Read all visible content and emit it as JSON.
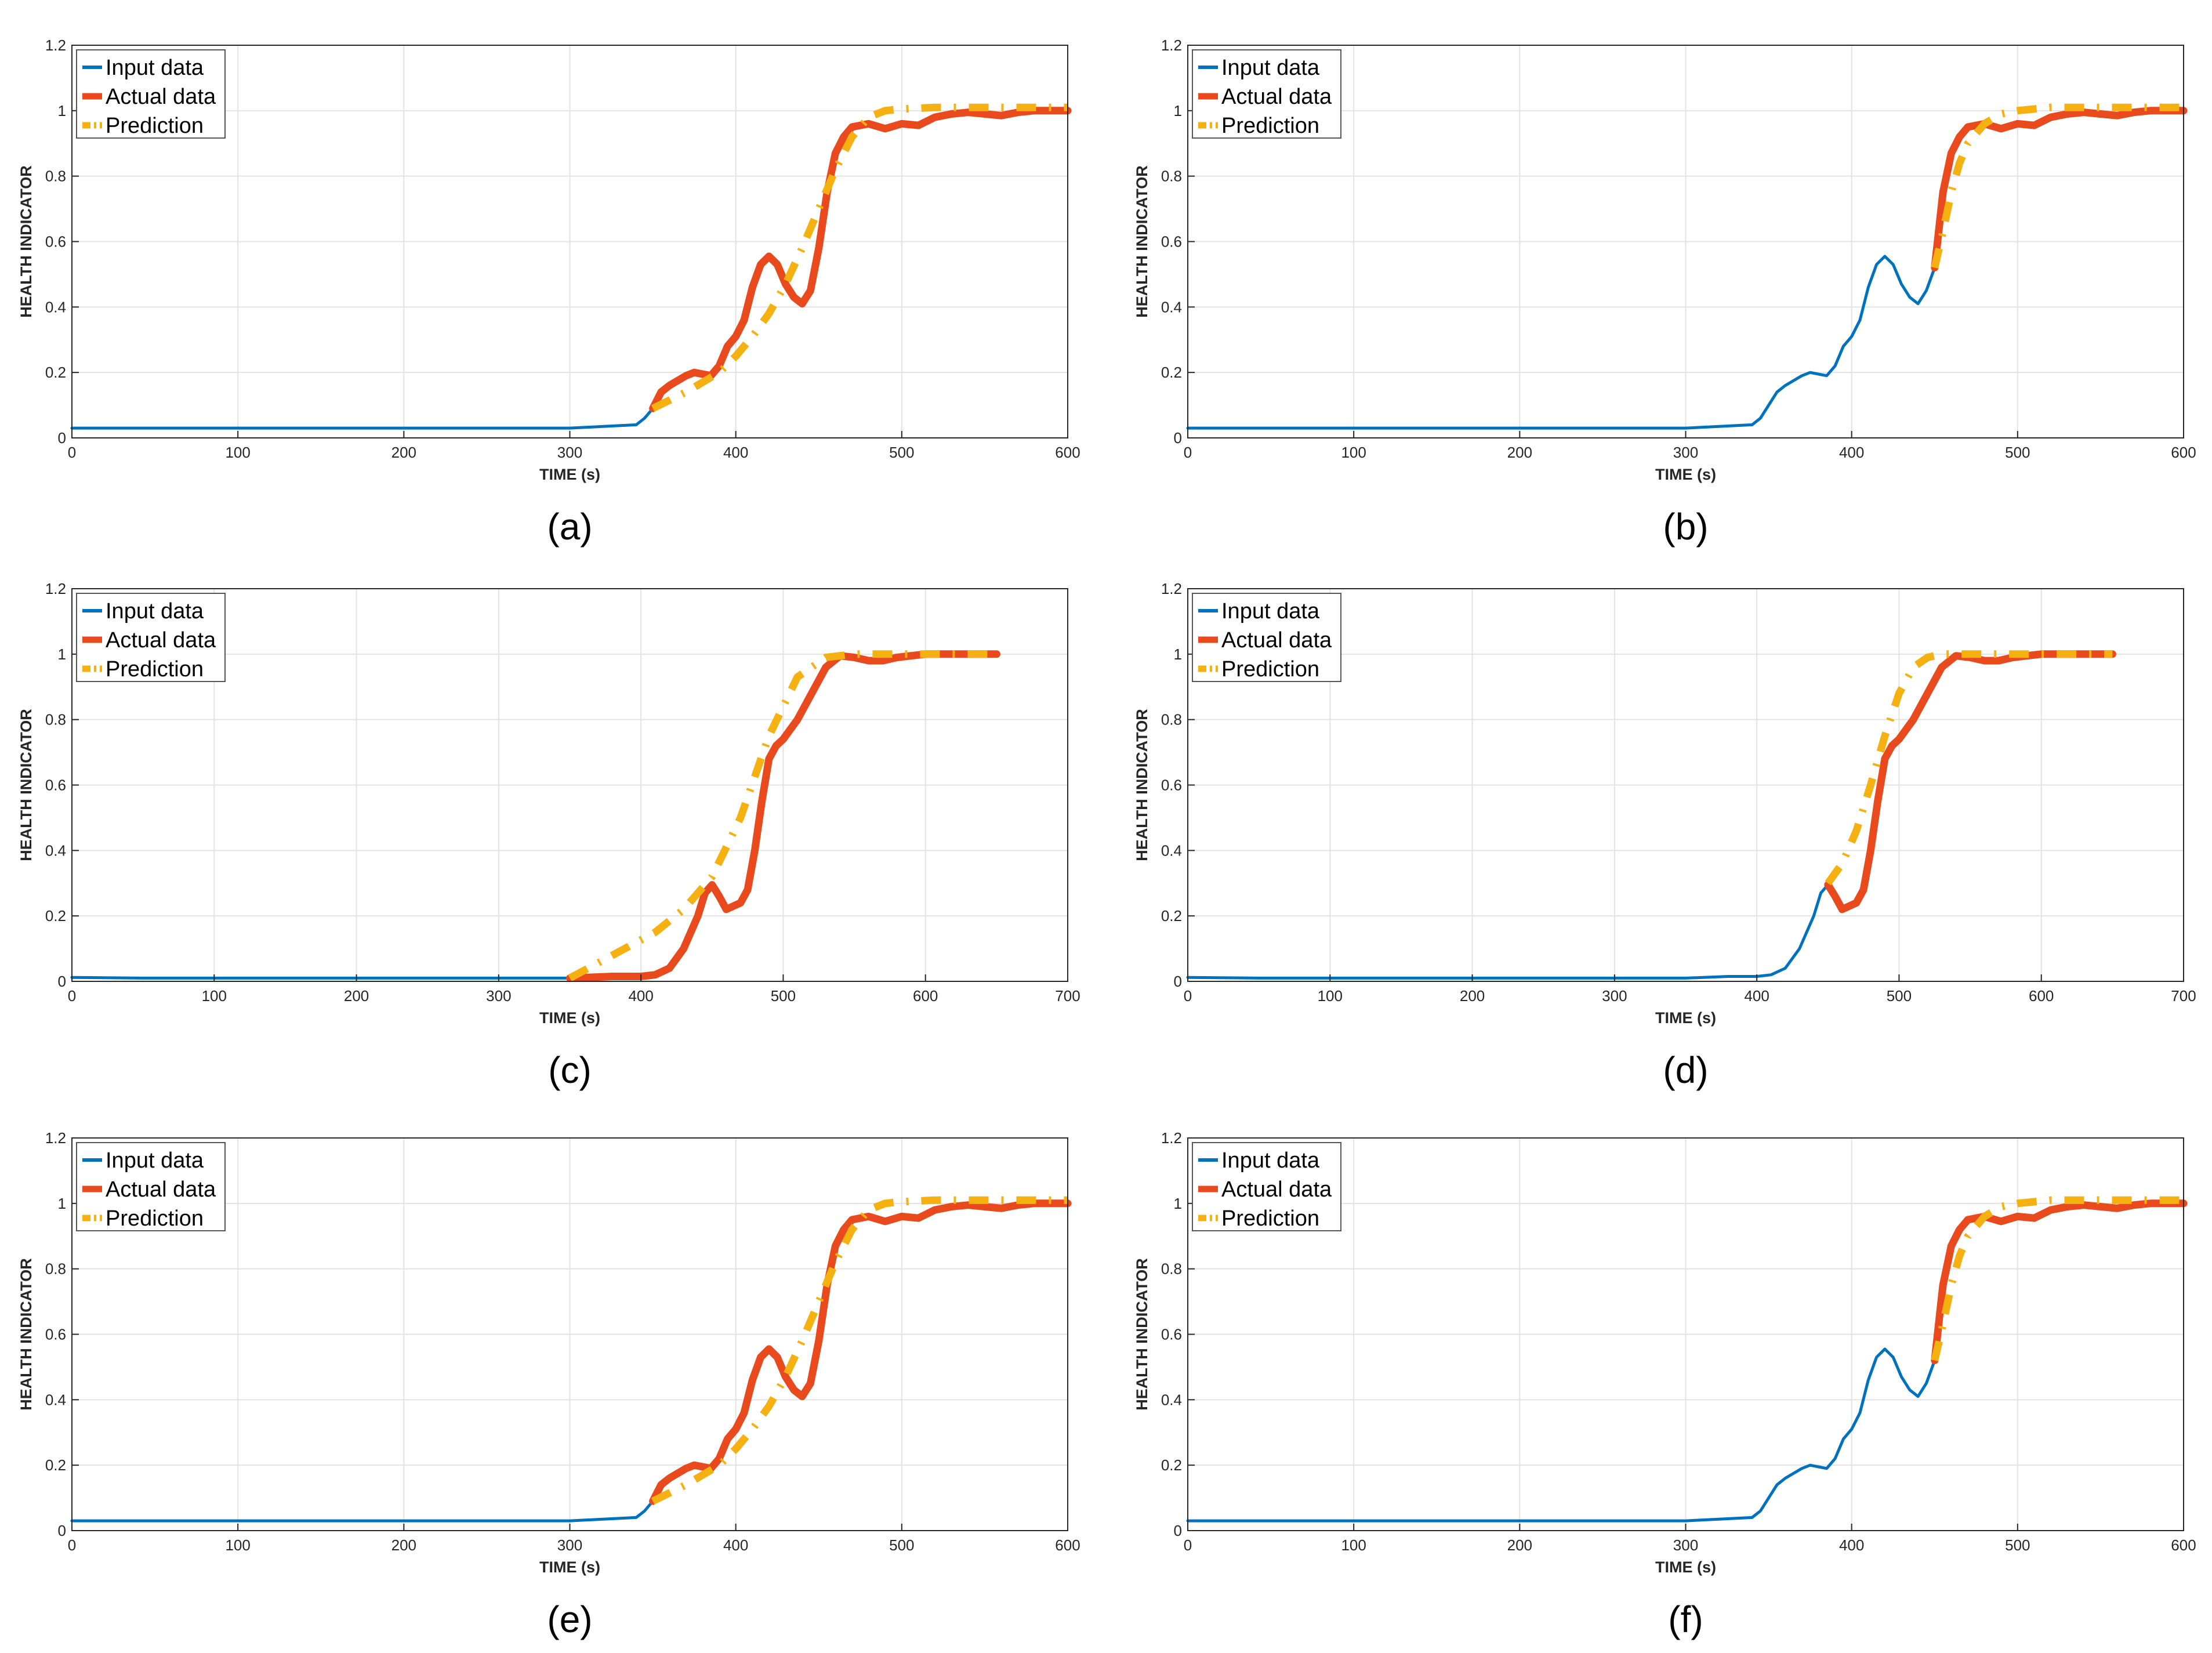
{
  "colors": {
    "input": "#0072BD",
    "actual": "#E8491D",
    "prediction": "#F5B012",
    "grid": "#e3e3e3",
    "axis": "#262626"
  },
  "chart_data": [
    {
      "type": "line",
      "panel_label": "(a)",
      "xlabel": "TIME (s)",
      "ylabel": "HEALTH INDICATOR",
      "xlim": [
        0,
        600
      ],
      "ylim": [
        0,
        1.2
      ],
      "xticks": [
        0,
        100,
        200,
        300,
        400,
        500,
        600
      ],
      "yticks": [
        0,
        0.2,
        0.4,
        0.6,
        0.8,
        1,
        1.2
      ],
      "ytick_labels": [
        "0",
        "0.2",
        "0.4",
        "0.6",
        "0.8",
        "1",
        "1.2"
      ],
      "grid": true,
      "legend": "top-left",
      "series": [
        {
          "name": "Input data",
          "style": "solid",
          "x": [
            0,
            100,
            200,
            300,
            320,
            340,
            345,
            350
          ],
          "y": [
            0.03,
            0.03,
            0.03,
            0.03,
            0.035,
            0.04,
            0.06,
            0.09
          ]
        },
        {
          "name": "Actual data",
          "style": "solid",
          "x": [
            350,
            355,
            360,
            370,
            375,
            380,
            385,
            390,
            395,
            400,
            405,
            410,
            415,
            420,
            425,
            430,
            435,
            440,
            445,
            450,
            455,
            460,
            465,
            470,
            480,
            490,
            500,
            510,
            520,
            530,
            540,
            550,
            560,
            570,
            580,
            590,
            600
          ],
          "y": [
            0.09,
            0.14,
            0.16,
            0.19,
            0.2,
            0.195,
            0.19,
            0.22,
            0.28,
            0.31,
            0.36,
            0.46,
            0.53,
            0.555,
            0.53,
            0.47,
            0.43,
            0.41,
            0.45,
            0.58,
            0.75,
            0.87,
            0.92,
            0.95,
            0.96,
            0.945,
            0.96,
            0.955,
            0.98,
            0.99,
            0.995,
            0.99,
            0.985,
            0.995,
            1.0,
            1.0,
            1.0
          ]
        },
        {
          "name": "Prediction",
          "style": "dashdot",
          "x": [
            350,
            370,
            390,
            400,
            410,
            420,
            430,
            440,
            450,
            460,
            470,
            480,
            490,
            500,
            520,
            550,
            580,
            600
          ],
          "y": [
            0.09,
            0.14,
            0.2,
            0.25,
            0.31,
            0.38,
            0.47,
            0.58,
            0.7,
            0.82,
            0.92,
            0.98,
            1.0,
            1.005,
            1.01,
            1.01,
            1.01,
            1.01
          ]
        }
      ]
    },
    {
      "type": "line",
      "panel_label": "(b)",
      "xlabel": "TIME (s)",
      "ylabel": "HEALTH INDICATOR",
      "xlim": [
        0,
        600
      ],
      "ylim": [
        0,
        1.2
      ],
      "xticks": [
        0,
        100,
        200,
        300,
        400,
        500,
        600
      ],
      "yticks": [
        0,
        0.2,
        0.4,
        0.6,
        0.8,
        1,
        1.2
      ],
      "ytick_labels": [
        "0",
        "0.2",
        "0.4",
        "0.6",
        "0.8",
        "1",
        "1.2"
      ],
      "grid": true,
      "legend": "top-left",
      "series": [
        {
          "name": "Input data",
          "style": "solid",
          "x": [
            0,
            100,
            200,
            300,
            320,
            340,
            345,
            355,
            360,
            370,
            375,
            380,
            385,
            390,
            395,
            400,
            405,
            410,
            415,
            420,
            425,
            430,
            435,
            440,
            445,
            450
          ],
          "y": [
            0.03,
            0.03,
            0.03,
            0.03,
            0.035,
            0.04,
            0.06,
            0.14,
            0.16,
            0.19,
            0.2,
            0.195,
            0.19,
            0.22,
            0.28,
            0.31,
            0.36,
            0.46,
            0.53,
            0.555,
            0.53,
            0.47,
            0.43,
            0.41,
            0.45,
            0.52
          ]
        },
        {
          "name": "Actual data",
          "style": "solid",
          "x": [
            450,
            455,
            460,
            465,
            470,
            480,
            490,
            500,
            510,
            520,
            530,
            540,
            550,
            560,
            570,
            580,
            590,
            600
          ],
          "y": [
            0.52,
            0.75,
            0.87,
            0.92,
            0.95,
            0.96,
            0.945,
            0.96,
            0.955,
            0.98,
            0.99,
            0.995,
            0.99,
            0.985,
            0.995,
            1.0,
            1.0,
            1.0
          ]
        },
        {
          "name": "Prediction",
          "style": "dashdot",
          "x": [
            450,
            455,
            460,
            465,
            470,
            480,
            490,
            500,
            520,
            550,
            580,
            600
          ],
          "y": [
            0.52,
            0.63,
            0.75,
            0.84,
            0.9,
            0.96,
            0.99,
            1.0,
            1.01,
            1.01,
            1.01,
            1.01
          ]
        }
      ]
    },
    {
      "type": "line",
      "panel_label": "(c)",
      "xlabel": "TIME (s)",
      "ylabel": "HEALTH INDICATOR",
      "xlim": [
        0,
        700
      ],
      "ylim": [
        0,
        1.2
      ],
      "xticks": [
        0,
        100,
        200,
        300,
        400,
        500,
        600,
        700
      ],
      "yticks": [
        0,
        0.2,
        0.4,
        0.6,
        0.8,
        1,
        1.2
      ],
      "ytick_labels": [
        "0",
        "0.2",
        "0.4",
        "0.6",
        "0.8",
        "1",
        "1.2"
      ],
      "grid": true,
      "legend": "top-left",
      "series": [
        {
          "name": "Input data",
          "style": "solid",
          "x": [
            0,
            50,
            100,
            150,
            200,
            250,
            300,
            350
          ],
          "y": [
            0.012,
            0.01,
            0.01,
            0.01,
            0.01,
            0.01,
            0.01,
            0.01
          ]
        },
        {
          "name": "Actual data",
          "style": "solid",
          "x": [
            350,
            380,
            400,
            410,
            420,
            430,
            440,
            445,
            450,
            455,
            460,
            470,
            475,
            480,
            485,
            490,
            495,
            500,
            510,
            520,
            530,
            540,
            550,
            560,
            570,
            580,
            600,
            620,
            650
          ],
          "y": [
            0.01,
            0.015,
            0.015,
            0.02,
            0.04,
            0.1,
            0.2,
            0.27,
            0.295,
            0.26,
            0.22,
            0.24,
            0.28,
            0.4,
            0.55,
            0.68,
            0.72,
            0.74,
            0.8,
            0.88,
            0.96,
            0.995,
            0.99,
            0.98,
            0.98,
            0.99,
            1.0,
            1.0,
            1.0
          ]
        },
        {
          "name": "Prediction",
          "style": "dashdot",
          "x": [
            350,
            380,
            410,
            430,
            450,
            470,
            490,
            510,
            530,
            550,
            600,
            650
          ],
          "y": [
            0.01,
            0.08,
            0.15,
            0.22,
            0.32,
            0.5,
            0.75,
            0.93,
            0.99,
            1.0,
            1.0,
            1.0
          ]
        }
      ]
    },
    {
      "type": "line",
      "panel_label": "(d)",
      "xlabel": "TIME (s)",
      "ylabel": "HEALTH INDICATOR",
      "xlim": [
        0,
        700
      ],
      "ylim": [
        0,
        1.2
      ],
      "xticks": [
        0,
        100,
        200,
        300,
        400,
        500,
        600,
        700
      ],
      "yticks": [
        0,
        0.2,
        0.4,
        0.6,
        0.8,
        1,
        1.2
      ],
      "ytick_labels": [
        "0",
        "0.2",
        "0.4",
        "0.6",
        "0.8",
        "1",
        "1.2"
      ],
      "grid": true,
      "legend": "top-left",
      "series": [
        {
          "name": "Input data",
          "style": "solid",
          "x": [
            0,
            50,
            100,
            150,
            200,
            250,
            300,
            350,
            380,
            400,
            410,
            420,
            430,
            440,
            445,
            450
          ],
          "y": [
            0.012,
            0.01,
            0.01,
            0.01,
            0.01,
            0.01,
            0.01,
            0.01,
            0.015,
            0.015,
            0.02,
            0.04,
            0.1,
            0.2,
            0.27,
            0.295
          ]
        },
        {
          "name": "Actual data",
          "style": "solid",
          "x": [
            450,
            455,
            460,
            470,
            475,
            480,
            485,
            490,
            495,
            500,
            510,
            520,
            530,
            540,
            550,
            560,
            570,
            580,
            600,
            620,
            650
          ],
          "y": [
            0.295,
            0.26,
            0.22,
            0.24,
            0.28,
            0.4,
            0.55,
            0.68,
            0.72,
            0.74,
            0.8,
            0.88,
            0.96,
            0.995,
            0.99,
            0.98,
            0.98,
            0.99,
            1.0,
            1.0,
            1.0
          ]
        },
        {
          "name": "Prediction",
          "style": "dashdot",
          "x": [
            450,
            460,
            470,
            480,
            490,
            500,
            510,
            520,
            530,
            550,
            600,
            650
          ],
          "y": [
            0.3,
            0.36,
            0.46,
            0.6,
            0.75,
            0.88,
            0.96,
            0.99,
            1.0,
            1.0,
            1.0,
            1.0
          ]
        }
      ]
    },
    {
      "type": "line",
      "panel_label": "(e)",
      "xlabel": "TIME (s)",
      "ylabel": "HEALTH INDICATOR",
      "xlim": [
        0,
        600
      ],
      "ylim": [
        0,
        1.2
      ],
      "xticks": [
        0,
        100,
        200,
        300,
        400,
        500,
        600
      ],
      "yticks": [
        0,
        0.2,
        0.4,
        0.6,
        0.8,
        1,
        1.2
      ],
      "ytick_labels": [
        "0",
        "0.2",
        "0.4",
        "0.6",
        "0.8",
        "1",
        "1.2"
      ],
      "grid": true,
      "legend": "top-left",
      "series": [
        {
          "name": "Input data",
          "style": "solid",
          "x": [
            0,
            100,
            200,
            300,
            320,
            340,
            345,
            350
          ],
          "y": [
            0.03,
            0.03,
            0.03,
            0.03,
            0.035,
            0.04,
            0.06,
            0.09
          ]
        },
        {
          "name": "Actual data",
          "style": "solid",
          "x": [
            350,
            355,
            360,
            370,
            375,
            380,
            385,
            390,
            395,
            400,
            405,
            410,
            415,
            420,
            425,
            430,
            435,
            440,
            445,
            450,
            455,
            460,
            465,
            470,
            480,
            490,
            500,
            510,
            520,
            530,
            540,
            550,
            560,
            570,
            580,
            590,
            600
          ],
          "y": [
            0.09,
            0.14,
            0.16,
            0.19,
            0.2,
            0.195,
            0.19,
            0.22,
            0.28,
            0.31,
            0.36,
            0.46,
            0.53,
            0.555,
            0.53,
            0.47,
            0.43,
            0.41,
            0.45,
            0.58,
            0.75,
            0.87,
            0.92,
            0.95,
            0.96,
            0.945,
            0.96,
            0.955,
            0.98,
            0.99,
            0.995,
            0.99,
            0.985,
            0.995,
            1.0,
            1.0,
            1.0
          ]
        },
        {
          "name": "Prediction",
          "style": "dashdot",
          "x": [
            350,
            370,
            390,
            400,
            410,
            420,
            430,
            440,
            450,
            460,
            470,
            480,
            490,
            500,
            520,
            550,
            580,
            600
          ],
          "y": [
            0.09,
            0.14,
            0.2,
            0.25,
            0.31,
            0.38,
            0.47,
            0.58,
            0.7,
            0.82,
            0.92,
            0.98,
            1.0,
            1.005,
            1.01,
            1.01,
            1.01,
            1.01
          ]
        }
      ]
    },
    {
      "type": "line",
      "panel_label": "(f)",
      "xlabel": "TIME (s)",
      "ylabel": "HEALTH INDICATOR",
      "xlim": [
        0,
        600
      ],
      "ylim": [
        0,
        1.2
      ],
      "xticks": [
        0,
        100,
        200,
        300,
        400,
        500,
        600
      ],
      "yticks": [
        0,
        0.2,
        0.4,
        0.6,
        0.8,
        1,
        1.2
      ],
      "ytick_labels": [
        "0",
        "0.2",
        "0.4",
        "0.6",
        "0.8",
        "1",
        "1.2"
      ],
      "grid": true,
      "legend": "top-left",
      "series": [
        {
          "name": "Input data",
          "style": "solid",
          "x": [
            0,
            100,
            200,
            300,
            320,
            340,
            345,
            355,
            360,
            370,
            375,
            380,
            385,
            390,
            395,
            400,
            405,
            410,
            415,
            420,
            425,
            430,
            435,
            440,
            445,
            450
          ],
          "y": [
            0.03,
            0.03,
            0.03,
            0.03,
            0.035,
            0.04,
            0.06,
            0.14,
            0.16,
            0.19,
            0.2,
            0.195,
            0.19,
            0.22,
            0.28,
            0.31,
            0.36,
            0.46,
            0.53,
            0.555,
            0.53,
            0.47,
            0.43,
            0.41,
            0.45,
            0.52
          ]
        },
        {
          "name": "Actual data",
          "style": "solid",
          "x": [
            450,
            455,
            460,
            465,
            470,
            480,
            490,
            500,
            510,
            520,
            530,
            540,
            550,
            560,
            570,
            580,
            590,
            600
          ],
          "y": [
            0.52,
            0.75,
            0.87,
            0.92,
            0.95,
            0.96,
            0.945,
            0.96,
            0.955,
            0.98,
            0.99,
            0.995,
            0.99,
            0.985,
            0.995,
            1.0,
            1.0,
            1.0
          ]
        },
        {
          "name": "Prediction",
          "style": "dashdot",
          "x": [
            450,
            455,
            460,
            465,
            470,
            480,
            490,
            500,
            520,
            550,
            580,
            600
          ],
          "y": [
            0.52,
            0.63,
            0.75,
            0.84,
            0.9,
            0.96,
            0.99,
            1.0,
            1.01,
            1.01,
            1.01,
            1.01
          ]
        }
      ]
    }
  ]
}
